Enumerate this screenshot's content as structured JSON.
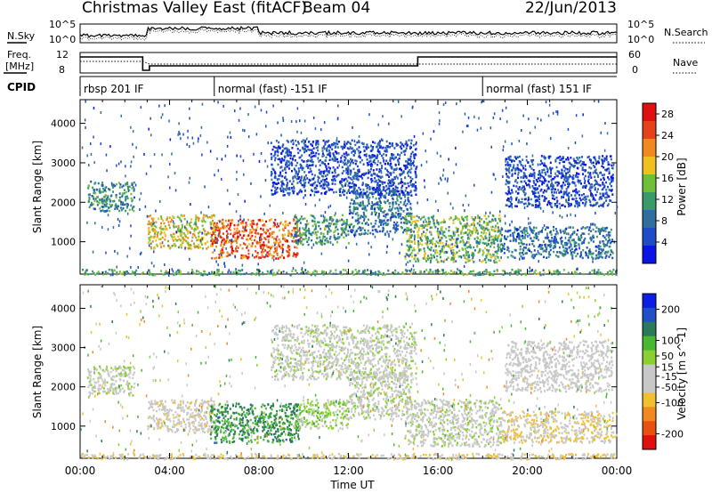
{
  "header": {
    "station": "Christmas Valley East (fitACF)",
    "beam": "Beam 04",
    "date": "22/Jun/2013"
  },
  "summary_panels": {
    "nsky_label": "N.Sky",
    "nsearch_label": "N.Search",
    "freq_label_line1": "Freq.",
    "freq_label_line2": "[MHz]",
    "nave_label": "Nave",
    "cpid_label": "CPID",
    "noise_ticks": [
      "10^5",
      "10^0"
    ],
    "freq_ticks": [
      "12",
      "8"
    ],
    "nave_ticks": [
      "60",
      "0"
    ]
  },
  "cpid_segments": [
    {
      "label": "rbsp 201 IF",
      "start_hour": 0
    },
    {
      "label": "normal (fast) -151 IF",
      "start_hour": 6.0
    },
    {
      "label": "normal (fast) 151 IF",
      "start_hour": 18.0
    }
  ],
  "colors": {
    "power": [
      "#0a14e6",
      "#1c4cc8",
      "#2f6e9e",
      "#3a9a6a",
      "#6fbf3a",
      "#f0c020",
      "#f08a1e",
      "#e8401a",
      "#e01010"
    ],
    "velocity": [
      "#0c1ee6",
      "#2050c8",
      "#2a7a5a",
      "#48b830",
      "#8ad030",
      "#c8c8c8",
      "#c8c8c8",
      "#f0c030",
      "#f08a20",
      "#e85010",
      "#e01010"
    ]
  },
  "chart_data": [
    {
      "type": "heatmap",
      "title": "",
      "xlabel": "Time UT",
      "ylabel": "Slant Range [km]",
      "xlim": [
        0,
        24
      ],
      "ylim": [
        180,
        4600
      ],
      "xticks": [
        "00:00",
        "04:00",
        "08:00",
        "12:00",
        "16:00",
        "20:00",
        "00:00"
      ],
      "yticks": [
        1000,
        2000,
        3000,
        4000
      ],
      "colorbar": {
        "label": "Power [dB]",
        "ticks": [
          4,
          8,
          12,
          16,
          20,
          24,
          28
        ],
        "range": [
          0,
          30
        ]
      },
      "regions": [
        {
          "t0": 0.3,
          "t1": 2.4,
          "r0": 1800,
          "r1": 2550,
          "level": 10
        },
        {
          "t0": 3.0,
          "t1": 6.0,
          "r0": 850,
          "r1": 1700,
          "level": 18
        },
        {
          "t0": 5.8,
          "t1": 9.8,
          "r0": 600,
          "r1": 1600,
          "level": 24
        },
        {
          "t0": 9.5,
          "t1": 12.0,
          "r0": 950,
          "r1": 1700,
          "level": 12
        },
        {
          "t0": 12.0,
          "t1": 14.8,
          "r0": 1200,
          "r1": 2400,
          "level": 8
        },
        {
          "t0": 14.5,
          "t1": 18.8,
          "r0": 500,
          "r1": 1700,
          "level": 14
        },
        {
          "t0": 18.8,
          "t1": 23.8,
          "r0": 600,
          "r1": 1400,
          "level": 8
        },
        {
          "t0": 8.5,
          "t1": 15.0,
          "r0": 2200,
          "r1": 3600,
          "level": 5
        },
        {
          "t0": 19.0,
          "t1": 23.8,
          "r0": 1900,
          "r1": 3200,
          "level": 5
        },
        {
          "t0": 0.0,
          "t1": 24.0,
          "r0": 180,
          "r1": 320,
          "level": 12
        }
      ]
    },
    {
      "type": "heatmap",
      "title": "",
      "xlabel": "Time UT",
      "ylabel": "Slant Range [km]",
      "xlim": [
        0,
        24
      ],
      "ylim": [
        180,
        4600
      ],
      "xticks": [
        "00:00",
        "04:00",
        "08:00",
        "12:00",
        "16:00",
        "20:00",
        "00:00"
      ],
      "yticks": [
        1000,
        2000,
        3000,
        4000
      ],
      "colorbar": {
        "label": "Velocity [m s^-1]",
        "ticks": [
          200,
          100,
          50,
          15,
          -15,
          -50,
          -100,
          -200
        ],
        "range": [
          -250,
          250
        ]
      },
      "regions": [
        {
          "t0": 0.3,
          "t1": 2.4,
          "r0": 1800,
          "r1": 2550,
          "level": 0
        },
        {
          "t0": 3.0,
          "t1": 6.0,
          "r0": 850,
          "r1": 1700,
          "level": -40
        },
        {
          "t0": 5.8,
          "t1": 9.8,
          "r0": 600,
          "r1": 1600,
          "level": 120
        },
        {
          "t0": 9.5,
          "t1": 12.0,
          "r0": 950,
          "r1": 1700,
          "level": 40
        },
        {
          "t0": 12.0,
          "t1": 14.8,
          "r0": 1200,
          "r1": 2400,
          "level": 0
        },
        {
          "t0": 14.5,
          "t1": 18.8,
          "r0": 500,
          "r1": 1700,
          "level": 0
        },
        {
          "t0": 18.8,
          "t1": 23.8,
          "r0": 600,
          "r1": 1400,
          "level": -60
        },
        {
          "t0": 8.5,
          "t1": 15.0,
          "r0": 2200,
          "r1": 3600,
          "level": 0
        },
        {
          "t0": 19.0,
          "t1": 23.8,
          "r0": 1900,
          "r1": 3200,
          "level": -20
        },
        {
          "t0": 0.0,
          "t1": 24.0,
          "r0": 180,
          "r1": 320,
          "level": -60
        }
      ]
    }
  ]
}
